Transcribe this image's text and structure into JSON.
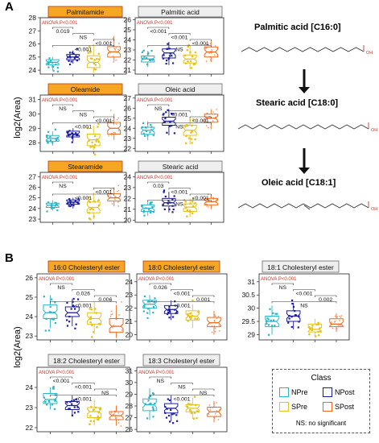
{
  "figure": {
    "panel_a_label": "A",
    "panel_b_label": "B",
    "panel_a_ylabel": "log2(Area)",
    "panel_b_ylabel": "log2(Area)",
    "anova_text": "ANOVA P<0.001",
    "ns_note": "NS: no significant"
  },
  "colors": {
    "npre": "#29b6c8",
    "npost": "#1c1c9e",
    "spre": "#e6c21a",
    "spost": "#f06a1c",
    "amide_header": "#f5a623",
    "acid_header": "#eeeeee",
    "anova": "#c0392b"
  },
  "legend": {
    "title": "Class",
    "items": [
      {
        "label": "NPre",
        "color_key": "npre"
      },
      {
        "label": "NPost",
        "color_key": "npost"
      },
      {
        "label": "SPre",
        "color_key": "spre"
      },
      {
        "label": "SPost",
        "color_key": "spost"
      }
    ]
  },
  "pathway": [
    {
      "label": "Palmitic acid [C16:0]"
    },
    {
      "label": "Stearic acid [C18:0]"
    },
    {
      "label": "Oleic acid [C18:1]"
    }
  ],
  "chart_data": [
    {
      "type": "box",
      "title": "Palmitamide",
      "groups": [
        "NPre",
        "NPost",
        "SPre",
        "SPost"
      ],
      "yticks": [
        24,
        25,
        26,
        27,
        28
      ],
      "ylim": [
        23.7,
        28.0
      ],
      "annotation": "ANOVA P<0.001",
      "medians": [
        24.6,
        25.0,
        24.6,
        25.4
      ],
      "q1": [
        24.4,
        24.8,
        24.2,
        25.0
      ],
      "q3": [
        24.8,
        25.2,
        25.1,
        25.8
      ],
      "whisker_low": [
        24.0,
        24.5,
        23.8,
        24.7
      ],
      "whisker_high": [
        25.0,
        25.5,
        26.0,
        26.6
      ],
      "comparisons": [
        {
          "pair": [
            "NPre",
            "NPost"
          ],
          "label": "0.019"
        },
        {
          "pair": [
            "NPost",
            "SPre"
          ],
          "label": "NS"
        },
        {
          "pair": [
            "SPre",
            "SPost"
          ],
          "label": "<0.001"
        },
        {
          "pair": [
            "NPre",
            "SPost"
          ],
          "label": "<0.001"
        }
      ]
    },
    {
      "type": "box",
      "title": "Palmitic acid",
      "groups": [
        "NPre",
        "NPost",
        "SPre",
        "SPost"
      ],
      "yticks": [
        21,
        22,
        23,
        24,
        25,
        26
      ],
      "ylim": [
        20.6,
        26.2
      ],
      "annotation": "ANOVA P<0.001",
      "medians": [
        22.1,
        22.7,
        22.1,
        22.8
      ],
      "q1": [
        21.8,
        22.2,
        21.7,
        22.3
      ],
      "q3": [
        22.4,
        23.1,
        22.5,
        23.3
      ],
      "whisker_low": [
        21.3,
        21.5,
        21.1,
        21.8
      ],
      "whisker_high": [
        22.9,
        23.8,
        23.4,
        23.9
      ],
      "comparisons": [
        {
          "pair": [
            "NPre",
            "NPost"
          ],
          "label": "<0.001"
        },
        {
          "pair": [
            "NPost",
            "SPre"
          ],
          "label": "<0.001"
        },
        {
          "pair": [
            "SPre",
            "SPost"
          ],
          "label": "<0.001"
        },
        {
          "pair": [
            "NPre",
            "SPost"
          ],
          "label": "NS"
        }
      ]
    },
    {
      "type": "box",
      "title": "Oleamide",
      "groups": [
        "NPre",
        "NPost",
        "SPre",
        "SPost"
      ],
      "yticks": [
        28,
        29,
        30,
        31
      ],
      "ylim": [
        27.4,
        31.3
      ],
      "annotation": "ANOVA P<0.001",
      "medians": [
        28.3,
        28.6,
        28.2,
        29.0
      ],
      "q1": [
        28.1,
        28.4,
        27.8,
        28.6
      ],
      "q3": [
        28.5,
        28.8,
        28.6,
        29.4
      ],
      "whisker_low": [
        27.8,
        28.1,
        27.5,
        28.2
      ],
      "whisker_high": [
        28.8,
        29.0,
        29.2,
        30.0
      ],
      "comparisons": [
        {
          "pair": [
            "NPre",
            "NPost"
          ],
          "label": "NS"
        },
        {
          "pair": [
            "NPost",
            "SPre"
          ],
          "label": "NS"
        },
        {
          "pair": [
            "SPre",
            "SPost"
          ],
          "label": "<0.001"
        },
        {
          "pair": [
            "NPre",
            "SPost"
          ],
          "label": "<0.001"
        }
      ]
    },
    {
      "type": "box",
      "title": "Oleic acid",
      "groups": [
        "NPre",
        "NPost",
        "SPre",
        "SPost"
      ],
      "yticks": [
        22,
        23,
        24,
        25,
        26,
        27
      ],
      "ylim": [
        21.7,
        27.3
      ],
      "annotation": "ANOVA P<0.001",
      "medians": [
        23.8,
        24.7,
        23.8,
        25.0
      ],
      "q1": [
        23.4,
        24.3,
        23.3,
        24.6
      ],
      "q3": [
        24.1,
        25.1,
        24.3,
        25.4
      ],
      "whisker_low": [
        22.8,
        23.3,
        22.4,
        23.9
      ],
      "whisker_high": [
        24.7,
        25.9,
        25.1,
        25.9
      ],
      "comparisons": [
        {
          "pair": [
            "NPre",
            "NPost"
          ],
          "label": "NS"
        },
        {
          "pair": [
            "NPost",
            "SPre"
          ],
          "label": "<0.001"
        },
        {
          "pair": [
            "SPre",
            "SPost"
          ],
          "label": "<0.001"
        },
        {
          "pair": [
            "NPre",
            "SPost"
          ],
          "label": "NS"
        }
      ]
    },
    {
      "type": "box",
      "title": "Stearamide",
      "groups": [
        "NPre",
        "NPost",
        "SPre",
        "SPost"
      ],
      "yticks": [
        23,
        24,
        25,
        26,
        27
      ],
      "ylim": [
        22.7,
        27.4
      ],
      "annotation": "ANOVA P<0.001",
      "medians": [
        24.3,
        24.6,
        24.1,
        25.0
      ],
      "q1": [
        24.1,
        24.4,
        23.6,
        24.7
      ],
      "q3": [
        24.5,
        24.8,
        24.6,
        25.4
      ],
      "whisker_low": [
        23.8,
        24.0,
        23.0,
        24.2
      ],
      "whisker_high": [
        24.8,
        25.0,
        25.5,
        26.0
      ],
      "comparisons": [
        {
          "pair": [
            "NPre",
            "NPost"
          ],
          "label": "NS"
        },
        {
          "pair": [
            "SPre",
            "SPost"
          ],
          "label": "<0.001"
        },
        {
          "pair": [
            "NPre",
            "SPost"
          ],
          "label": "<0.001"
        }
      ]
    },
    {
      "type": "box",
      "title": "Stearic acid",
      "groups": [
        "NPre",
        "NPost",
        "SPre",
        "SPost"
      ],
      "yticks": [
        20,
        21,
        22,
        23,
        24
      ],
      "ylim": [
        19.8,
        24.4
      ],
      "annotation": "ANOVA P<0.001",
      "medians": [
        21.1,
        21.6,
        21.2,
        21.7
      ],
      "q1": [
        20.8,
        21.3,
        20.8,
        21.4
      ],
      "q3": [
        21.4,
        22.0,
        21.5,
        22.0
      ],
      "whisker_low": [
        20.4,
        20.7,
        20.3,
        21.0
      ],
      "whisker_high": [
        21.8,
        22.6,
        22.0,
        22.4
      ],
      "comparisons": [
        {
          "pair": [
            "NPre",
            "NPost"
          ],
          "label": "0.03"
        },
        {
          "pair": [
            "NPost",
            "SPre"
          ],
          "label": "<0.001"
        },
        {
          "pair": [
            "SPre",
            "SPost"
          ],
          "label": "<0.001"
        },
        {
          "pair": [
            "NPre",
            "SPost"
          ],
          "label": "NS"
        }
      ]
    },
    {
      "type": "box",
      "title": "16:0 Cholesteryl ester",
      "groups": [
        "NPre",
        "NPost",
        "SPre",
        "SPost"
      ],
      "yticks": [
        23,
        24,
        25,
        26
      ],
      "ylim": [
        22.8,
        26.2
      ],
      "annotation": "ANOVA P<0.001",
      "medians": [
        24.2,
        24.2,
        23.9,
        23.5
      ],
      "q1": [
        23.9,
        24.0,
        23.6,
        23.2
      ],
      "q3": [
        24.6,
        24.5,
        24.2,
        23.9
      ],
      "whisker_low": [
        23.4,
        23.5,
        23.1,
        22.9
      ],
      "whisker_high": [
        25.1,
        24.9,
        24.8,
        24.6
      ],
      "comparisons": [
        {
          "pair": [
            "NPre",
            "NPost"
          ],
          "label": "NS"
        },
        {
          "pair": [
            "NPost",
            "SPre"
          ],
          "label": "0.026"
        },
        {
          "pair": [
            "SPre",
            "SPost"
          ],
          "label": "0.006"
        },
        {
          "pair": [
            "NPre",
            "SPost"
          ],
          "label": "<0.001"
        }
      ]
    },
    {
      "type": "box",
      "title": "18:0 Cholesteryl ester",
      "groups": [
        "NPre",
        "NPost",
        "SPre",
        "SPost"
      ],
      "yticks": [
        20,
        21,
        22,
        23,
        24
      ],
      "ylim": [
        19.6,
        24.6
      ],
      "annotation": "ANOVA P<0.001",
      "medians": [
        22.3,
        21.9,
        21.4,
        20.9
      ],
      "q1": [
        22.0,
        21.6,
        21.1,
        20.6
      ],
      "q3": [
        22.6,
        22.2,
        21.8,
        21.3
      ],
      "whisker_low": [
        21.5,
        21.1,
        20.5,
        20.0
      ],
      "whisker_high": [
        23.0,
        22.6,
        22.3,
        21.8
      ],
      "comparisons": [
        {
          "pair": [
            "NPre",
            "NPost"
          ],
          "label": "0.026"
        },
        {
          "pair": [
            "NPost",
            "SPre"
          ],
          "label": "<0.001"
        },
        {
          "pair": [
            "SPre",
            "SPost"
          ],
          "label": "0.001"
        },
        {
          "pair": [
            "NPre",
            "SPost"
          ],
          "label": "<0.001"
        }
      ]
    },
    {
      "type": "box",
      "title": "18:1 Cholesteryl ester",
      "groups": [
        "NPre",
        "NPost",
        "SPre",
        "SPost"
      ],
      "yticks": [
        29.0,
        29.5,
        30.0,
        30.5,
        31.0
      ],
      "ylim": [
        28.8,
        31.3
      ],
      "annotation": "ANOVA P<0.001",
      "medians": [
        29.5,
        29.7,
        29.2,
        29.4
      ],
      "q1": [
        29.3,
        29.5,
        29.1,
        29.3
      ],
      "q3": [
        29.7,
        29.9,
        29.4,
        29.6
      ],
      "whisker_low": [
        29.0,
        29.2,
        28.9,
        29.1
      ],
      "whisker_high": [
        30.1,
        30.2,
        29.6,
        29.8
      ],
      "comparisons": [
        {
          "pair": [
            "NPre",
            "NPost"
          ],
          "label": "NS"
        },
        {
          "pair": [
            "NPost",
            "SPre"
          ],
          "label": "<0.001"
        },
        {
          "pair": [
            "SPre",
            "SPost"
          ],
          "label": "0.002"
        },
        {
          "pair": [
            "NPre",
            "SPost"
          ],
          "label": "NS"
        }
      ]
    },
    {
      "type": "box",
      "title": "18:2 Cholesteryl ester",
      "groups": [
        "NPre",
        "NPost",
        "SPre",
        "SPost"
      ],
      "yticks": [
        22,
        23,
        24
      ],
      "ylim": [
        21.8,
        25.0
      ],
      "annotation": "ANOVA P<0.001",
      "medians": [
        23.4,
        23.1,
        22.8,
        22.6
      ],
      "q1": [
        23.2,
        22.9,
        22.5,
        22.4
      ],
      "q3": [
        23.7,
        23.3,
        23.0,
        22.8
      ],
      "whisker_low": [
        22.9,
        22.6,
        22.1,
        22.1
      ],
      "whisker_high": [
        24.0,
        23.6,
        23.4,
        23.1
      ],
      "comparisons": [
        {
          "pair": [
            "NPre",
            "NPost"
          ],
          "label": "<0.001"
        },
        {
          "pair": [
            "NPost",
            "SPre"
          ],
          "label": "<0.001"
        },
        {
          "pair": [
            "SPre",
            "SPost"
          ],
          "label": "NS"
        },
        {
          "pair": [
            "NPre",
            "SPost"
          ],
          "label": "<0.001"
        }
      ]
    },
    {
      "type": "box",
      "title": "18:3 Cholesteryl ester",
      "groups": [
        "NPre",
        "NPost",
        "SPre",
        "SPost"
      ],
      "yticks": [
        26,
        27,
        28,
        29,
        30,
        31
      ],
      "ylim": [
        25.8,
        31.3
      ],
      "annotation": "ANOVA P<0.001",
      "medians": [
        28.1,
        27.8,
        27.8,
        27.5
      ],
      "q1": [
        27.6,
        27.4,
        27.5,
        27.1
      ],
      "q3": [
        28.6,
        28.2,
        28.1,
        27.9
      ],
      "whisker_low": [
        26.8,
        26.7,
        26.9,
        26.6
      ],
      "whisker_high": [
        29.5,
        28.9,
        28.7,
        28.4
      ],
      "comparisons": [
        {
          "pair": [
            "NPre",
            "NPost"
          ],
          "label": "NS"
        },
        {
          "pair": [
            "NPost",
            "SPre"
          ],
          "label": "NS"
        },
        {
          "pair": [
            "SPre",
            "SPost"
          ],
          "label": "NS"
        },
        {
          "pair": [
            "NPre",
            "SPost"
          ],
          "label": "<0.001"
        }
      ]
    }
  ]
}
